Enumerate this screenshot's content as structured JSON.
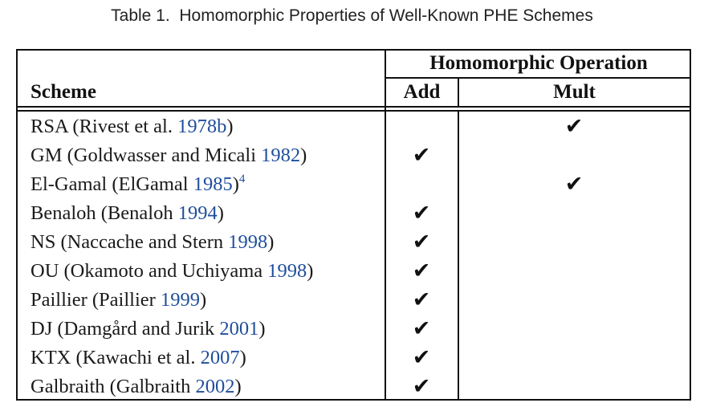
{
  "caption": "Table 1.  Homomorphic Properties of Well-Known PHE Schemes",
  "header": {
    "group": "Homomorphic Operation",
    "scheme": "Scheme",
    "add": "Add",
    "mult": "Mult"
  },
  "check_glyph": "✔",
  "rows": [
    {
      "name": "RSA (Rivest et al. ",
      "year": "1978b",
      "close": ")",
      "sup": "",
      "add": false,
      "mult": true
    },
    {
      "name": "GM (Goldwasser and Micali ",
      "year": "1982",
      "close": ")",
      "sup": "",
      "add": true,
      "mult": false
    },
    {
      "name": "El-Gamal (ElGamal ",
      "year": "1985",
      "close": ")",
      "sup": "4",
      "add": false,
      "mult": true
    },
    {
      "name": "Benaloh (Benaloh ",
      "year": "1994",
      "close": ")",
      "sup": "",
      "add": true,
      "mult": false
    },
    {
      "name": "NS (Naccache and Stern ",
      "year": "1998",
      "close": ")",
      "sup": "",
      "add": true,
      "mult": false
    },
    {
      "name": "OU (Okamoto and Uchiyama ",
      "year": "1998",
      "close": ")",
      "sup": "",
      "add": true,
      "mult": false
    },
    {
      "name": "Paillier (Paillier ",
      "year": "1999",
      "close": ")",
      "sup": "",
      "add": true,
      "mult": false
    },
    {
      "name": "DJ (Damgård and Jurik ",
      "year": "2001",
      "close": ")",
      "sup": "",
      "add": true,
      "mult": false
    },
    {
      "name": "KTX (Kawachi et al. ",
      "year": "2007",
      "close": ")",
      "sup": "",
      "add": true,
      "mult": false
    },
    {
      "name": "Galbraith (Galbraith ",
      "year": "2002",
      "close": ")",
      "sup": "",
      "add": true,
      "mult": false
    }
  ]
}
